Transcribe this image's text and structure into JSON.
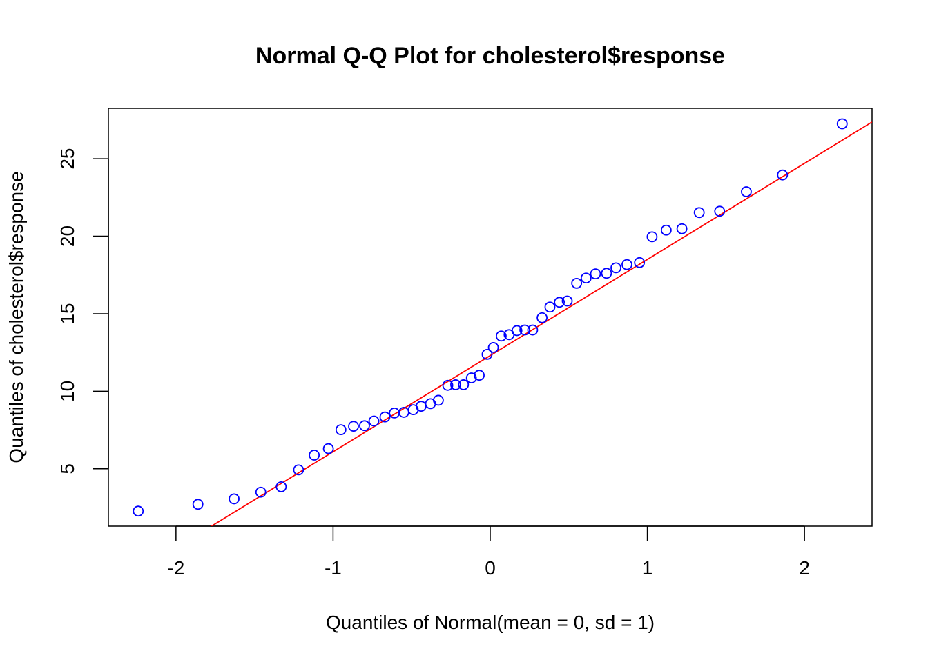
{
  "chart_data": {
    "type": "scatter",
    "title": "Normal Q-Q Plot for cholesterol$response",
    "xlabel": "Quantiles of Normal(mean = 0, sd = 1)",
    "ylabel": "Quantiles of cholesterol$response",
    "xlim": [
      -2.43,
      2.43
    ],
    "ylim": [
      1.3,
      28.25
    ],
    "x_ticks": [
      -2,
      -1,
      0,
      1,
      2
    ],
    "x_tick_labels": [
      "-2",
      "-1",
      "0",
      "1",
      "2"
    ],
    "y_ticks": [
      5,
      10,
      15,
      20,
      25
    ],
    "y_tick_labels": [
      "5",
      "10",
      "15",
      "20",
      "25"
    ],
    "grid": false,
    "legend": "none",
    "points_color": "#0000ff",
    "line_color": "#ff0000",
    "reference_line": {
      "intercept": 12.3,
      "slope": 6.2
    },
    "points": [
      {
        "x": -2.24,
        "y": 2.27
      },
      {
        "x": -1.86,
        "y": 2.71
      },
      {
        "x": -1.63,
        "y": 3.06
      },
      {
        "x": -1.46,
        "y": 3.49
      },
      {
        "x": -1.33,
        "y": 3.84
      },
      {
        "x": -1.22,
        "y": 4.93
      },
      {
        "x": -1.12,
        "y": 5.88
      },
      {
        "x": -1.03,
        "y": 6.3
      },
      {
        "x": -0.95,
        "y": 7.52
      },
      {
        "x": -0.87,
        "y": 7.74
      },
      {
        "x": -0.8,
        "y": 7.78
      },
      {
        "x": -0.74,
        "y": 8.08
      },
      {
        "x": -0.67,
        "y": 8.34
      },
      {
        "x": -0.61,
        "y": 8.6
      },
      {
        "x": -0.55,
        "y": 8.64
      },
      {
        "x": -0.49,
        "y": 8.81
      },
      {
        "x": -0.44,
        "y": 9.03
      },
      {
        "x": -0.38,
        "y": 9.2
      },
      {
        "x": -0.33,
        "y": 9.42
      },
      {
        "x": -0.27,
        "y": 10.38
      },
      {
        "x": -0.22,
        "y": 10.42
      },
      {
        "x": -0.17,
        "y": 10.42
      },
      {
        "x": -0.12,
        "y": 10.86
      },
      {
        "x": -0.07,
        "y": 11.03
      },
      {
        "x": -0.02,
        "y": 12.38
      },
      {
        "x": 0.02,
        "y": 12.82
      },
      {
        "x": 0.07,
        "y": 13.56
      },
      {
        "x": 0.12,
        "y": 13.65
      },
      {
        "x": 0.17,
        "y": 13.91
      },
      {
        "x": 0.22,
        "y": 13.95
      },
      {
        "x": 0.27,
        "y": 13.95
      },
      {
        "x": 0.33,
        "y": 14.74
      },
      {
        "x": 0.38,
        "y": 15.43
      },
      {
        "x": 0.44,
        "y": 15.74
      },
      {
        "x": 0.49,
        "y": 15.82
      },
      {
        "x": 0.55,
        "y": 16.96
      },
      {
        "x": 0.61,
        "y": 17.3
      },
      {
        "x": 0.67,
        "y": 17.57
      },
      {
        "x": 0.74,
        "y": 17.61
      },
      {
        "x": 0.8,
        "y": 17.96
      },
      {
        "x": 0.87,
        "y": 18.17
      },
      {
        "x": 0.95,
        "y": 18.3
      },
      {
        "x": 1.03,
        "y": 19.96
      },
      {
        "x": 1.12,
        "y": 20.39
      },
      {
        "x": 1.22,
        "y": 20.48
      },
      {
        "x": 1.33,
        "y": 21.52
      },
      {
        "x": 1.46,
        "y": 21.61
      },
      {
        "x": 1.63,
        "y": 22.87
      },
      {
        "x": 1.86,
        "y": 23.95
      },
      {
        "x": 2.24,
        "y": 27.25
      }
    ]
  }
}
